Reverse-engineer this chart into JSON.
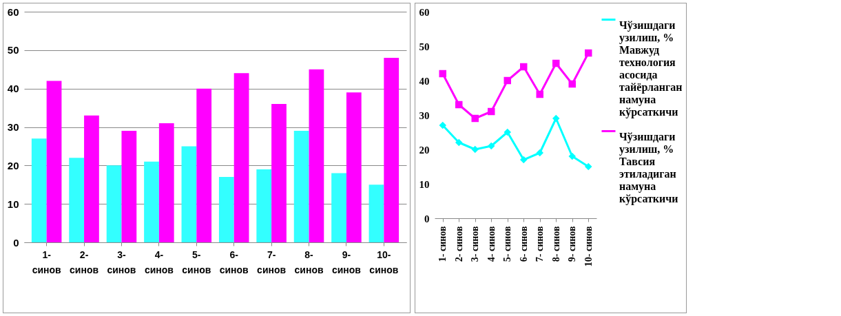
{
  "chart_data": [
    {
      "type": "bar",
      "categories": [
        "1- синов",
        "2- синов",
        "3- синов",
        "4- синов",
        "5- синов",
        "6- синов",
        "7- синов",
        "8- синов",
        "9- синов",
        "10- синов"
      ],
      "series": [
        {
          "color": "#33ffff",
          "values": [
            27,
            22,
            20,
            21,
            25,
            17,
            19,
            29,
            18,
            15
          ]
        },
        {
          "color": "#ff00ff",
          "values": [
            42,
            33,
            29,
            31,
            40,
            44,
            36,
            45,
            39,
            48
          ]
        }
      ],
      "ylim": [
        0,
        60
      ],
      "yticks": [
        0,
        10,
        20,
        30,
        40,
        50,
        60
      ],
      "grid": "y"
    },
    {
      "type": "line",
      "categories": [
        "1- синов",
        "2- синов",
        "3- синов",
        "4- синов",
        "5- синов",
        "6- синов",
        "7- синов",
        "8- синов",
        "9- синов",
        "10- синов"
      ],
      "series": [
        {
          "name": "Чўзишдаги узилиш, % Мавжуд технология асосида тайёрланган намуна кўрсаткичи",
          "color": "#00ffff",
          "marker": "diamond",
          "values": [
            27,
            22,
            20,
            21,
            25,
            17,
            19,
            29,
            18,
            15
          ]
        },
        {
          "name": "Чўзишдаги узилиш, % Тавсия этиладиган намуна кўрсаткичи",
          "color": "#ff00ff",
          "marker": "square",
          "values": [
            42,
            33,
            29,
            31,
            40,
            44,
            36,
            45,
            39,
            48
          ]
        }
      ],
      "ylim": [
        0,
        60
      ],
      "yticks": [
        0,
        10,
        20,
        30,
        40,
        50,
        60
      ],
      "grid": false,
      "legend": "right"
    }
  ]
}
